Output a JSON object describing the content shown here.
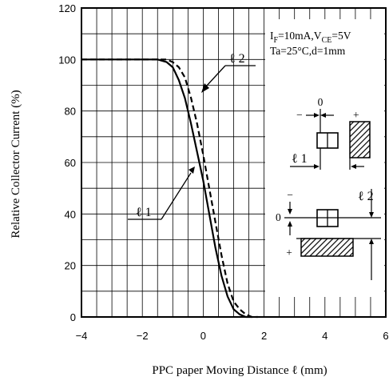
{
  "chart_data": {
    "type": "line",
    "title": "",
    "xlabel": "PPC paper Moving Distance ℓ (mm)",
    "ylabel": "Relative Collector Current (%)",
    "xlim": [
      -4,
      6
    ],
    "ylim": [
      0,
      120
    ],
    "x_ticks": [
      "−4",
      "−2",
      "0",
      "2",
      "4",
      "6"
    ],
    "y_ticks": [
      "0",
      "20",
      "40",
      "60",
      "80",
      "100",
      "120"
    ],
    "grid": true,
    "series": [
      {
        "name": "ℓ 1",
        "style": "solid",
        "x": [
          -4,
          -2,
          -1.5,
          -1.2,
          -1.0,
          -0.8,
          -0.6,
          -0.4,
          -0.2,
          0,
          0.2,
          0.4,
          0.6,
          0.8,
          1.0,
          1.2,
          1.4,
          1.6
        ],
        "y": [
          100,
          100,
          100,
          99,
          97,
          92,
          85,
          75,
          64,
          53,
          40,
          27,
          16,
          8,
          3,
          1,
          0,
          0
        ]
      },
      {
        "name": "ℓ 2",
        "style": "dashed",
        "x": [
          -4,
          -2,
          -1.5,
          -1.2,
          -1.0,
          -0.8,
          -0.6,
          -0.4,
          -0.2,
          0,
          0.2,
          0.4,
          0.6,
          0.8,
          1.0,
          1.2,
          1.4,
          1.6,
          1.8
        ],
        "y": [
          100,
          100,
          100,
          100,
          99,
          97,
          93,
          85,
          75,
          63,
          50,
          37,
          24,
          13,
          6,
          3,
          1,
          0,
          0
        ]
      }
    ],
    "conditions": {
      "if_prefix": "I",
      "if_sub": "F",
      "if_value": "=10mA,V",
      "vce_sub": "CE",
      "vce_value": "=5V",
      "line2": "Ta=25°C,d=1mm"
    },
    "diagram_labels": {
      "zero_top": "0",
      "minus_top": "−",
      "plus_top": "+",
      "l1": "ℓ 1",
      "zero_bottom": "0",
      "minus_bottom": "−",
      "plus_bottom": "+",
      "l2": "ℓ 2"
    }
  }
}
